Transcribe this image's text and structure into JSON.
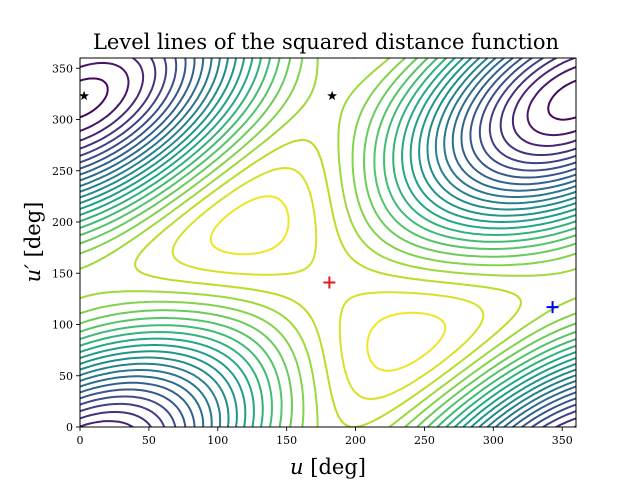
{
  "chart_data": {
    "type": "contour",
    "title": "Level lines of the squared distance function",
    "xlabel_var": "u",
    "xlabel_unit": " [deg]",
    "ylabel_var": "u′",
    "ylabel_unit": " [deg]",
    "xlim": [
      0,
      360
    ],
    "ylim": [
      0,
      360
    ],
    "xticks": [
      0,
      50,
      100,
      150,
      200,
      250,
      300,
      350
    ],
    "yticks": [
      0,
      50,
      100,
      150,
      200,
      250,
      300,
      350
    ],
    "colormap": "viridis",
    "levels": 24,
    "function_center": [
      180,
      140
    ],
    "markers": [
      {
        "name": "maximum",
        "shape": "plus",
        "color": "#e41a1c",
        "x": 181,
        "y": 141
      },
      {
        "name": "minimum",
        "shape": "plus",
        "color": "#0000ff",
        "x": 343,
        "y": 117
      },
      {
        "name": "star-1",
        "shape": "star",
        "color": "#000000",
        "x": 3,
        "y": 323
      },
      {
        "name": "star-2",
        "shape": "star",
        "color": "#000000",
        "x": 183,
        "y": 323
      }
    ]
  }
}
